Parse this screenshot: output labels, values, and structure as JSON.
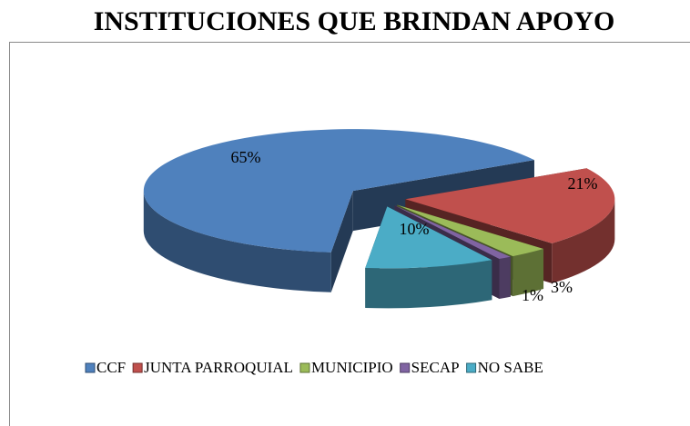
{
  "chart_data": {
    "type": "pie",
    "title": "INSTITUCIONES QUE BRINDAN APOYO",
    "categories": [
      "CCF",
      "JUNTA PARROQUIAL",
      "MUNICIPIO",
      "SECAP",
      "NO SABE"
    ],
    "values": [
      65,
      21,
      3,
      1,
      10
    ],
    "value_labels": [
      "65%",
      "21%",
      "3%",
      "1%",
      "10%"
    ],
    "colors": [
      "#4f81bd",
      "#c0504d",
      "#9bbb59",
      "#8064a2",
      "#4bacc6"
    ],
    "legend": "bottom"
  }
}
